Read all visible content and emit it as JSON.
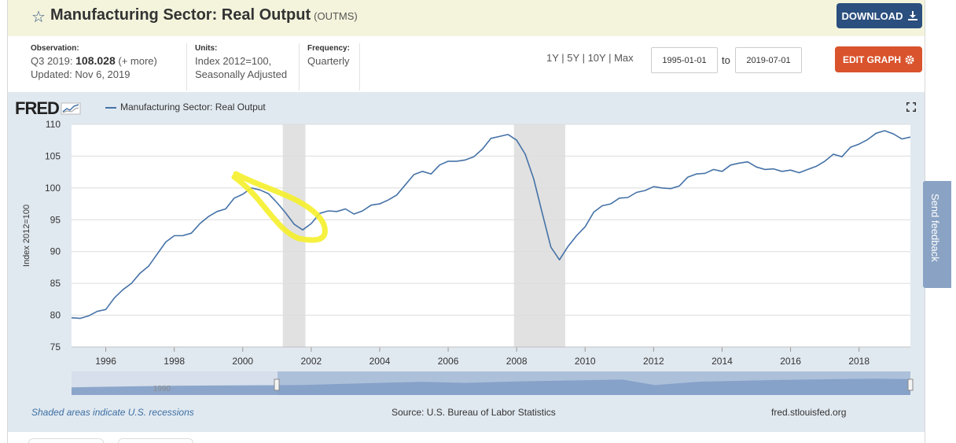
{
  "header": {
    "title": "Manufacturing Sector: Real Output",
    "series_code": "(OUTMS)",
    "download_label": "DOWNLOAD"
  },
  "meta": {
    "observation_label": "Observation:",
    "observation_period": "Q3 2019:",
    "observation_value": "108.028",
    "observation_more": "(+ more)",
    "updated": "Updated: Nov 6, 2019",
    "units_label": "Units:",
    "units_line1": "Index 2012=100,",
    "units_line2": "Seasonally Adjusted",
    "frequency_label": "Frequency:",
    "frequency_value": "Quarterly"
  },
  "controls": {
    "range_1y": "1Y",
    "range_5y": "5Y",
    "range_10y": "10Y",
    "range_max": "Max",
    "start_date": "1995-01-01",
    "to_label": "to",
    "end_date": "2019-07-01",
    "edit_label": "EDIT GRAPH"
  },
  "graph": {
    "logo": "FRED",
    "legend_label": "Manufacturing Sector: Real Output",
    "recession_note": "Shaded areas indicate U.S. recessions",
    "source": "Source: U.S. Bureau of Labor Statistics",
    "site": "fred.stlouisfed.org",
    "navigator_label": "1990"
  },
  "feedback_label": "Send feedback",
  "colors": {
    "series": "#4572a7",
    "recession": "#e1e1e1",
    "highlight": "#f5ef2a",
    "download": "#2b4f7e",
    "edit": "#d9532c"
  },
  "chart_data": {
    "type": "line",
    "title": "",
    "xlabel": "",
    "ylabel": "Index 2012=100",
    "xlim": [
      1995.0,
      2019.5
    ],
    "ylim": [
      75,
      110
    ],
    "yticks": [
      75,
      80,
      85,
      90,
      95,
      100,
      105,
      110
    ],
    "xticks": [
      1996,
      1998,
      2000,
      2002,
      2004,
      2006,
      2008,
      2010,
      2012,
      2014,
      2016,
      2018
    ],
    "grid": true,
    "legend": "top-left",
    "recessions": [
      [
        2001.17,
        2001.83
      ],
      [
        2007.92,
        2009.42
      ]
    ],
    "series": [
      {
        "name": "Manufacturing Sector: Real Output",
        "x": [
          1995.0,
          1995.25,
          1995.5,
          1995.75,
          1996.0,
          1996.25,
          1996.5,
          1996.75,
          1997.0,
          1997.25,
          1997.5,
          1997.75,
          1998.0,
          1998.25,
          1998.5,
          1998.75,
          1999.0,
          1999.25,
          1999.5,
          1999.75,
          2000.0,
          2000.25,
          2000.5,
          2000.75,
          2001.0,
          2001.25,
          2001.5,
          2001.75,
          2002.0,
          2002.25,
          2002.5,
          2002.75,
          2003.0,
          2003.25,
          2003.5,
          2003.75,
          2004.0,
          2004.25,
          2004.5,
          2004.75,
          2005.0,
          2005.25,
          2005.5,
          2005.75,
          2006.0,
          2006.25,
          2006.5,
          2006.75,
          2007.0,
          2007.25,
          2007.5,
          2007.75,
          2008.0,
          2008.25,
          2008.5,
          2008.75,
          2009.0,
          2009.25,
          2009.5,
          2009.75,
          2010.0,
          2010.25,
          2010.5,
          2010.75,
          2011.0,
          2011.25,
          2011.5,
          2011.75,
          2012.0,
          2012.25,
          2012.5,
          2012.75,
          2013.0,
          2013.25,
          2013.5,
          2013.75,
          2014.0,
          2014.25,
          2014.5,
          2014.75,
          2015.0,
          2015.25,
          2015.5,
          2015.75,
          2016.0,
          2016.25,
          2016.5,
          2016.75,
          2017.0,
          2017.25,
          2017.5,
          2017.75,
          2018.0,
          2018.25,
          2018.5,
          2018.75,
          2019.0,
          2019.25,
          2019.5
        ],
        "values": [
          79.6,
          79.5,
          79.9,
          80.6,
          80.9,
          82.7,
          84.0,
          85.0,
          86.6,
          87.7,
          89.6,
          91.5,
          92.5,
          92.5,
          92.9,
          94.4,
          95.5,
          96.3,
          96.7,
          98.4,
          99.0,
          100.0,
          99.7,
          99.1,
          97.7,
          96.1,
          94.3,
          93.4,
          94.4,
          96.0,
          96.4,
          96.3,
          96.7,
          95.9,
          96.4,
          97.3,
          97.5,
          98.1,
          98.9,
          100.5,
          102.1,
          102.6,
          102.2,
          103.6,
          104.2,
          104.2,
          104.4,
          104.9,
          106.1,
          107.8,
          108.1,
          108.4,
          107.5,
          105.3,
          101.4,
          96.0,
          90.7,
          88.7,
          90.8,
          92.5,
          93.9,
          96.2,
          97.2,
          97.5,
          98.4,
          98.5,
          99.3,
          99.6,
          100.2,
          100.0,
          99.9,
          100.3,
          101.7,
          102.2,
          102.3,
          102.9,
          102.6,
          103.6,
          103.9,
          104.1,
          103.3,
          102.9,
          103.0,
          102.6,
          102.8,
          102.4,
          102.9,
          103.4,
          104.2,
          105.3,
          104.9,
          106.4,
          106.9,
          107.6,
          108.6,
          109.0,
          108.5,
          107.7,
          108.0
        ]
      }
    ]
  }
}
